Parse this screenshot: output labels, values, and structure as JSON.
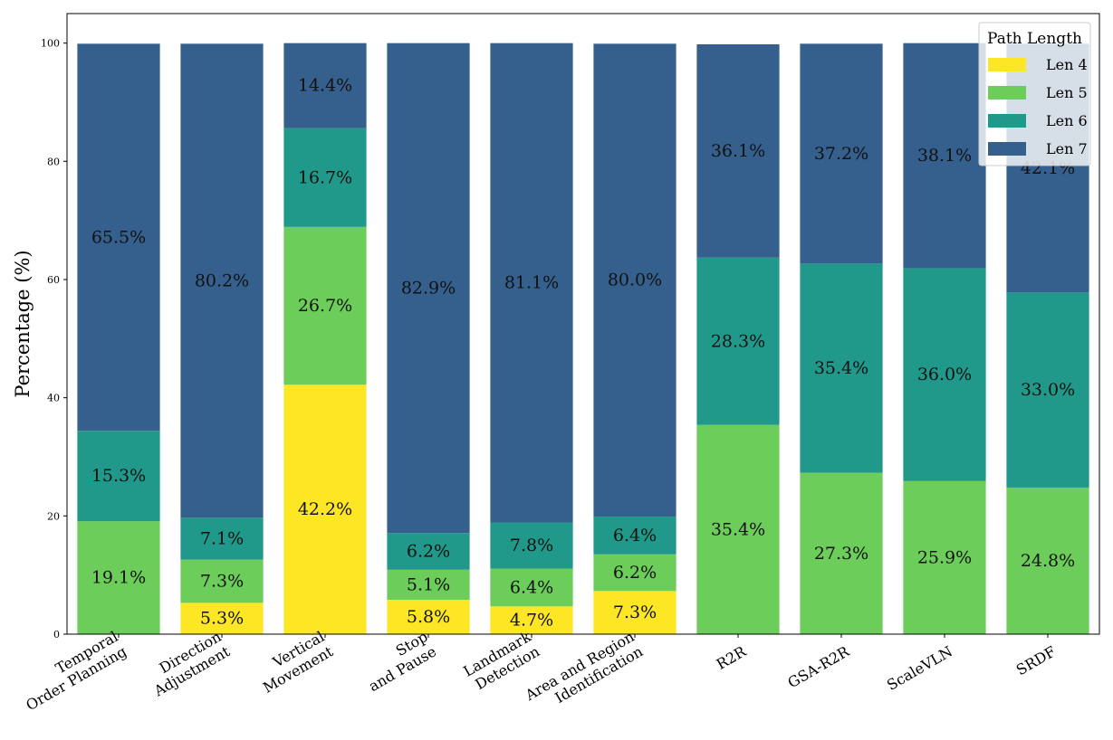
{
  "chart_data": {
    "type": "bar",
    "stacked": true,
    "title": "",
    "xlabel": "",
    "ylabel": "Percentage (%)",
    "ylim": [
      0,
      105
    ],
    "yticks": [
      "0",
      "20",
      "40",
      "60",
      "80",
      "100"
    ],
    "categories": [
      "Temporal\nOrder Planning",
      "Direction\nAdjustment",
      "Vertical\nMovement",
      "Stop\nand Pause",
      "Landmark\nDetection",
      "Area and Region\nIdentification",
      "R2R",
      "GSA-R2R",
      "ScaleVLN",
      "SRDF"
    ],
    "legend": {
      "title": "Path Length",
      "position": "top-right"
    },
    "series": [
      {
        "name": "Len 4",
        "color": "#fde725",
        "values": [
          0,
          5.3,
          42.2,
          5.8,
          4.7,
          7.3,
          0,
          0,
          0,
          0
        ]
      },
      {
        "name": "Len 5",
        "color": "#6ccd5a",
        "values": [
          19.1,
          7.3,
          26.7,
          5.1,
          6.4,
          6.2,
          35.4,
          27.3,
          25.9,
          24.8
        ]
      },
      {
        "name": "Len 6",
        "color": "#21998a",
        "values": [
          15.3,
          7.1,
          16.7,
          6.2,
          7.8,
          6.4,
          28.3,
          35.4,
          36.0,
          33.0
        ]
      },
      {
        "name": "Len 7",
        "color": "#35608d",
        "values": [
          65.5,
          80.2,
          14.4,
          82.9,
          81.1,
          80.0,
          36.1,
          37.2,
          38.1,
          42.1
        ]
      }
    ],
    "data_labels": [
      [
        "",
        "5.3%",
        "42.2%",
        "5.8%",
        "4.7%",
        "7.3%",
        "",
        "",
        "",
        ""
      ],
      [
        "19.1%",
        "7.3%",
        "26.7%",
        "5.1%",
        "6.4%",
        "6.2%",
        "35.4%",
        "27.3%",
        "25.9%",
        "24.8%"
      ],
      [
        "15.3%",
        "7.1%",
        "16.7%",
        "6.2%",
        "7.8%",
        "6.4%",
        "28.3%",
        "35.4%",
        "36.0%",
        "33.0%"
      ],
      [
        "65.5%",
        "80.2%",
        "14.4%",
        "82.9%",
        "81.1%",
        "80.0%",
        "36.1%",
        "37.2%",
        "38.1%",
        "42.1%"
      ]
    ]
  }
}
